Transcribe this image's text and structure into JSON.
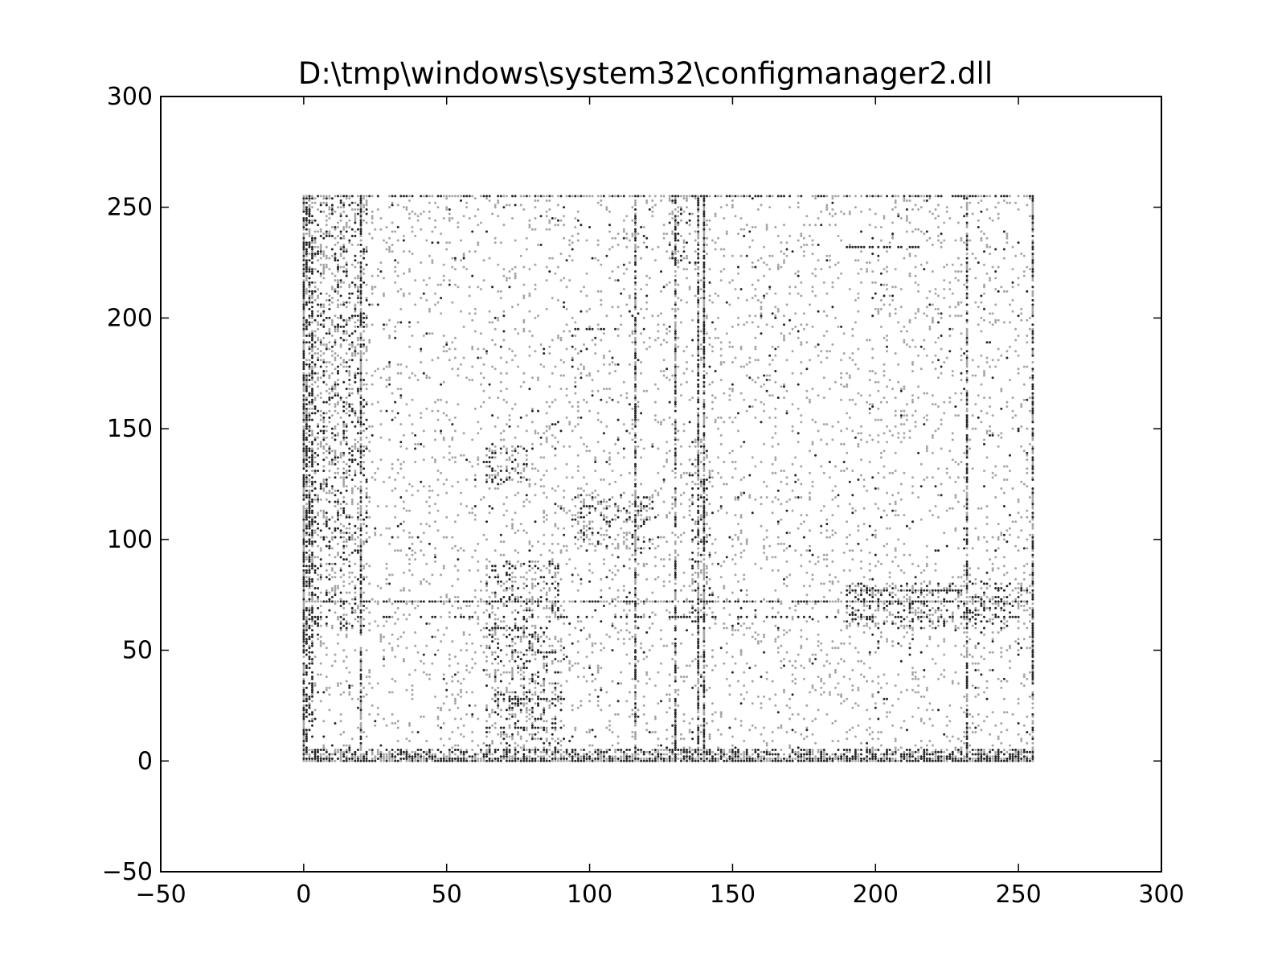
{
  "chart_data": {
    "type": "scatter",
    "title": "D:\\tmp\\windows\\system32\\configmanager2.dll",
    "xlabel": "",
    "ylabel": "",
    "xlim": [
      -50,
      300
    ],
    "ylim": [
      -50,
      300
    ],
    "xticks": [
      -50,
      0,
      50,
      100,
      150,
      200,
      250,
      300
    ],
    "yticks": [
      -50,
      0,
      50,
      100,
      150,
      200,
      250,
      300
    ],
    "xtick_labels": [
      "−50",
      "0",
      "50",
      "100",
      "150",
      "200",
      "250",
      "300"
    ],
    "ytick_labels": [
      "−50",
      "0",
      "50",
      "100",
      "150",
      "200",
      "250",
      "300"
    ],
    "grid": false,
    "marker_color": "#000000",
    "x_range_of_points": [
      0,
      255
    ],
    "y_range_of_points": [
      0,
      255
    ],
    "dense_x_columns": [
      0,
      20,
      116,
      130,
      138,
      140,
      232,
      255
    ],
    "dense_y_rows": [
      0,
      72,
      255
    ],
    "clusters": [
      {
        "x": [
          64,
          78
        ],
        "y": [
          125,
          142
        ]
      },
      {
        "x": [
          95,
          122
        ],
        "y": [
          96,
          120
        ]
      },
      {
        "x": [
          136,
          142
        ],
        "y": [
          62,
          145
        ]
      },
      {
        "x": [
          64,
          90
        ],
        "y": [
          5,
          90
        ]
      },
      {
        "x": [
          0,
          22
        ],
        "y": [
          60,
          255
        ]
      },
      {
        "x": [
          190,
          255
        ],
        "y": [
          60,
          80
        ]
      },
      {
        "x": [
          128,
          135
        ],
        "y": [
          225,
          255
        ]
      }
    ]
  }
}
